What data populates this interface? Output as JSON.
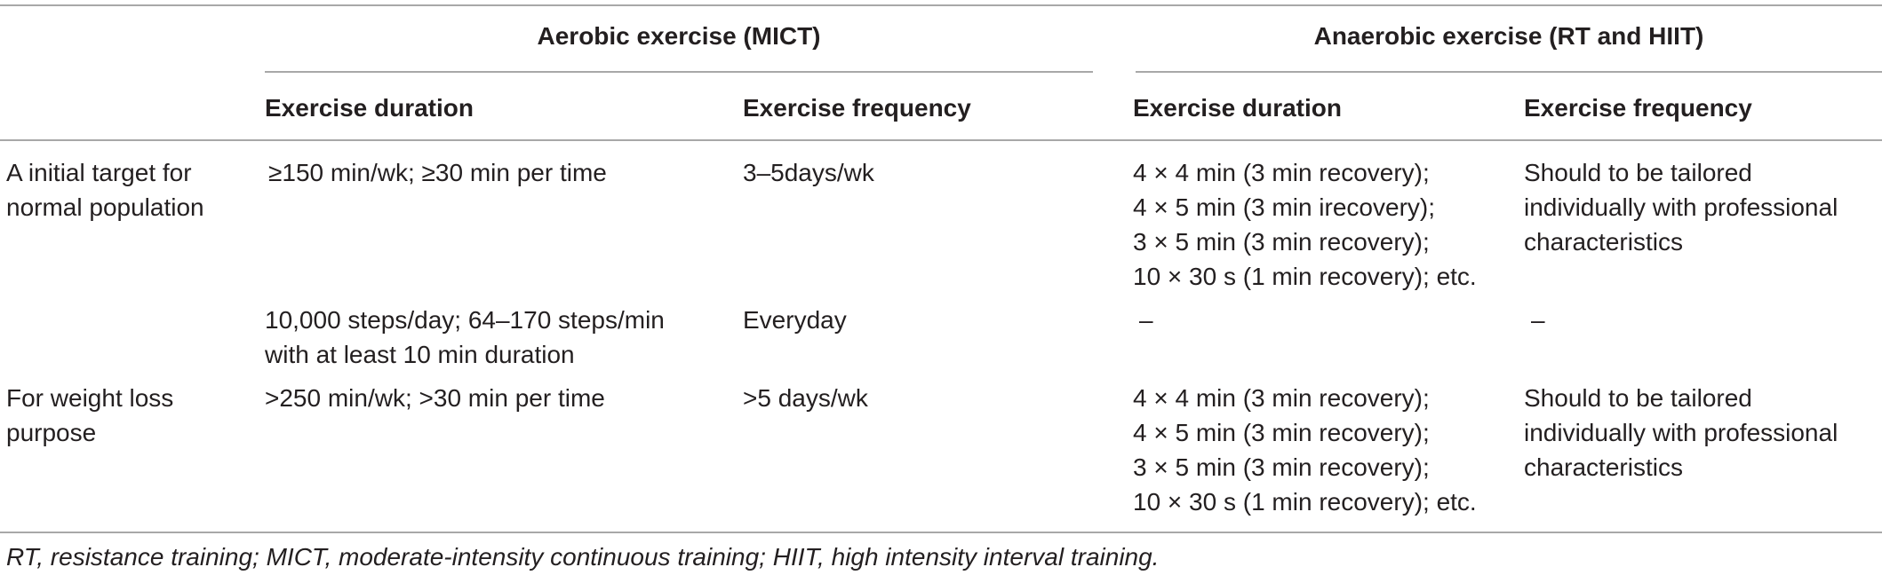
{
  "table": {
    "group_headers": {
      "aerobic": "Aerobic exercise (MICT)",
      "anaerobic": "Anaerobic exercise (RT and HIIT)"
    },
    "column_headers": {
      "aerobic_duration": "Exercise duration",
      "aerobic_frequency": "Exercise frequency",
      "anaerobic_duration": "Exercise duration",
      "anaerobic_frequency": "Exercise frequency"
    },
    "rows": [
      {
        "label": [
          "A initial target for",
          "normal population"
        ],
        "aerobic_duration": [
          "≥150 min/wk; ≥30 min per time"
        ],
        "aerobic_frequency": [
          "3–5days/wk"
        ],
        "anaerobic_duration": [
          "4 × 4 min (3 min recovery);",
          "4 × 5 min (3 min irecovery);",
          "3 × 5 min (3 min recovery);",
          "10 × 30 s (1 min recovery); etc."
        ],
        "anaerobic_frequency": [
          "Should to be tailored",
          "individually with professional",
          "characteristics"
        ]
      },
      {
        "label": [],
        "aerobic_duration": [
          "10,000 steps/day; 64–170 steps/min",
          "with at least 10 min duration"
        ],
        "aerobic_frequency": [
          "Everyday"
        ],
        "anaerobic_duration": [
          "–"
        ],
        "anaerobic_frequency": [
          "–"
        ]
      },
      {
        "label": [
          "For weight loss",
          "purpose"
        ],
        "aerobic_duration": [
          ">250 min/wk; >30 min per time"
        ],
        "aerobic_frequency": [
          ">5 days/wk"
        ],
        "anaerobic_duration": [
          "4 × 4 min (3 min recovery);",
          "4 × 5 min (3 min recovery);",
          "3 × 5 min (3 min recovery);",
          "10 × 30 s (1 min recovery); etc."
        ],
        "anaerobic_frequency": [
          "Should to be tailored",
          "individually with professional",
          "characteristics"
        ]
      }
    ],
    "footnote": "RT, resistance training; MICT, moderate-intensity continuous training; HIIT, high intensity interval training."
  }
}
